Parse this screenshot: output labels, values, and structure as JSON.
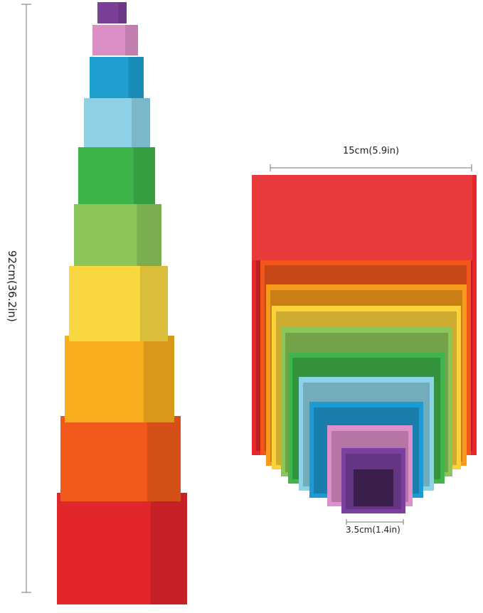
{
  "dimensions": {
    "tower_height": "92cm(36.2in)",
    "largest_box_width": "15cm(5.9in)",
    "smallest_box_width": "3.5cm(1.4in)"
  },
  "colors": {
    "tower": [
      "#7b3f98",
      "#dc8fc6",
      "#1e9fd0",
      "#8ed0e6",
      "#3db34a",
      "#8cc65a",
      "#f8d740",
      "#f6ad1e",
      "#f25a1b",
      "#e1262c"
    ],
    "nested": [
      "#e5262c",
      "#f2561c",
      "#f79a1b",
      "#fbd23a",
      "#8cc658",
      "#3fb54b",
      "#8bd3e6",
      "#1e9ad2",
      "#dc8fc8",
      "#7c41a0"
    ]
  }
}
